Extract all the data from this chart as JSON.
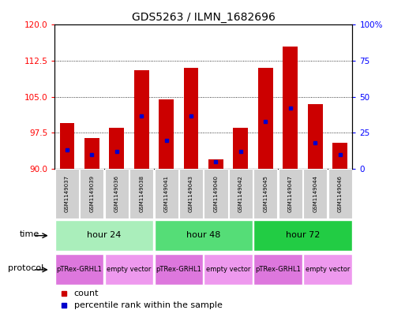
{
  "title": "GDS5263 / ILMN_1682696",
  "samples": [
    "GSM1149037",
    "GSM1149039",
    "GSM1149036",
    "GSM1149038",
    "GSM1149041",
    "GSM1149043",
    "GSM1149040",
    "GSM1149042",
    "GSM1149045",
    "GSM1149047",
    "GSM1149044",
    "GSM1149046"
  ],
  "counts": [
    99.5,
    96.5,
    98.5,
    110.5,
    104.5,
    111.0,
    92.0,
    98.5,
    111.0,
    115.5,
    103.5,
    95.5
  ],
  "percentile_ranks": [
    13,
    10,
    12,
    37,
    20,
    37,
    5,
    12,
    33,
    42,
    18,
    10
  ],
  "ylim_left": [
    90,
    120
  ],
  "ylim_right": [
    0,
    100
  ],
  "yticks_left": [
    90,
    97.5,
    105,
    112.5,
    120
  ],
  "yticks_right": [
    0,
    25,
    50,
    75,
    100
  ],
  "bar_color": "#cc0000",
  "marker_color": "#0000cc",
  "baseline": 90,
  "time_groups": [
    {
      "label": "hour 24",
      "start": 0,
      "end": 3,
      "color": "#aaeebb"
    },
    {
      "label": "hour 48",
      "start": 4,
      "end": 7,
      "color": "#55dd77"
    },
    {
      "label": "hour 72",
      "start": 8,
      "end": 11,
      "color": "#22cc44"
    }
  ],
  "protocol_groups": [
    {
      "label": "pTRex-GRHL1",
      "start": 0,
      "end": 1,
      "color": "#dd77dd"
    },
    {
      "label": "empty vector",
      "start": 2,
      "end": 3,
      "color": "#ee99ee"
    },
    {
      "label": "pTRex-GRHL1",
      "start": 4,
      "end": 5,
      "color": "#dd77dd"
    },
    {
      "label": "empty vector",
      "start": 6,
      "end": 7,
      "color": "#ee99ee"
    },
    {
      "label": "pTRex-GRHL1",
      "start": 8,
      "end": 9,
      "color": "#dd77dd"
    },
    {
      "label": "empty vector",
      "start": 10,
      "end": 11,
      "color": "#ee99ee"
    }
  ],
  "time_label": "time",
  "protocol_label": "protocol",
  "legend_count_label": "count",
  "legend_percentile_label": "percentile rank within the sample",
  "bg_color": "#ffffff"
}
